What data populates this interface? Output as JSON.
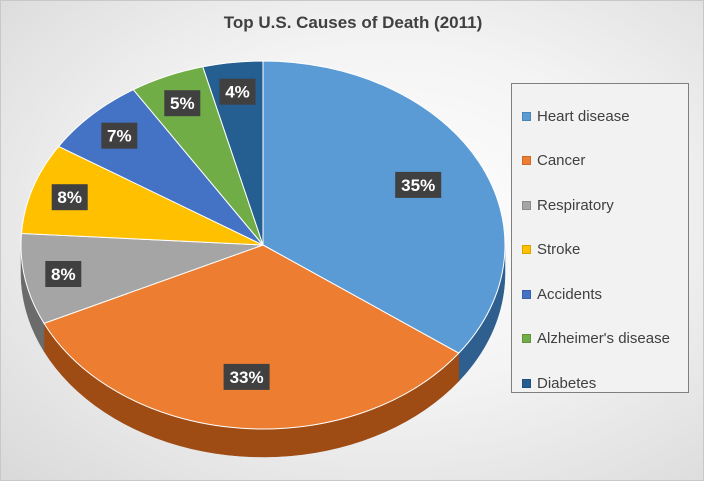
{
  "chart_data": {
    "type": "pie",
    "title": "Top U.S. Causes of Death (2011)",
    "legend_position": "right",
    "slices": [
      {
        "name": "Heart disease",
        "value": 35,
        "label": "35%",
        "color": "#5b9bd5",
        "dark": "#2e5f8f"
      },
      {
        "name": "Cancer",
        "value": 33,
        "label": "33%",
        "color": "#ed7d31",
        "dark": "#9e4b14"
      },
      {
        "name": "Respiratory",
        "value": 8,
        "label": "8%",
        "color": "#a5a5a5",
        "dark": "#6b6b6b"
      },
      {
        "name": "Stroke",
        "value": 8,
        "label": "8%",
        "color": "#ffc000",
        "dark": "#b38600"
      },
      {
        "name": "Accidents",
        "value": 7,
        "label": "7%",
        "color": "#4472c4",
        "dark": "#26457e"
      },
      {
        "name": "Alzheimer's disease",
        "value": 5,
        "label": "5%",
        "color": "#70ad47",
        "dark": "#46722a"
      },
      {
        "name": "Diabetes",
        "value": 4,
        "label": "4%",
        "color": "#255e91",
        "dark": "#143a5c"
      }
    ]
  }
}
